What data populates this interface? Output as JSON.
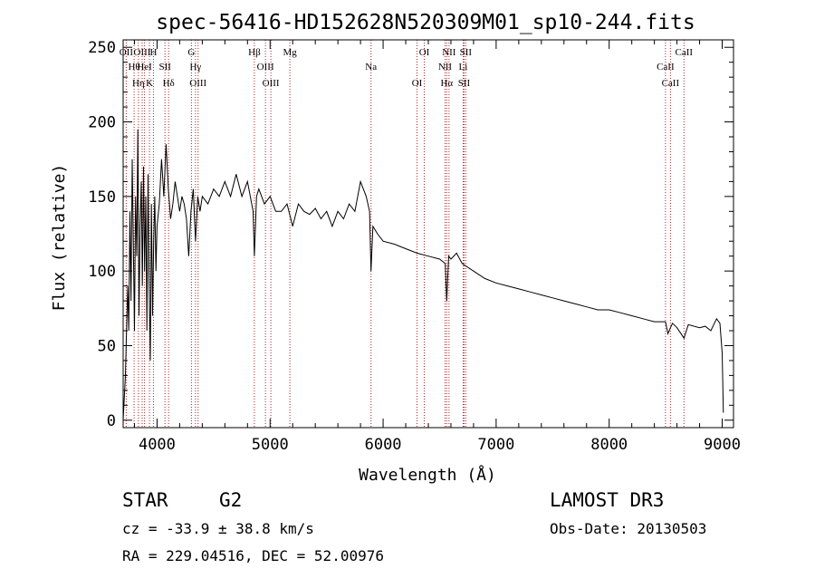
{
  "chart_data": {
    "type": "line",
    "title": "spec-56416-HD152628N520309M01_sp10-244.fits",
    "xlabel": "Wavelength (Å)",
    "ylabel": "Flux (relative)",
    "xlim": [
      3700,
      9100
    ],
    "ylim": [
      -5,
      255
    ],
    "xticks": [
      4000,
      5000,
      6000,
      7000,
      8000,
      9000
    ],
    "yticks": [
      0,
      50,
      100,
      150,
      200,
      250
    ],
    "grid": false,
    "series": [
      {
        "name": "spectrum",
        "x": [
          3700,
          3720,
          3740,
          3750,
          3760,
          3770,
          3780,
          3790,
          3800,
          3810,
          3820,
          3830,
          3840,
          3850,
          3860,
          3870,
          3880,
          3890,
          3900,
          3910,
          3920,
          3930,
          3940,
          3950,
          3960,
          3970,
          3980,
          3990,
          4000,
          4020,
          4040,
          4060,
          4080,
          4100,
          4120,
          4140,
          4160,
          4180,
          4200,
          4220,
          4240,
          4260,
          4280,
          4300,
          4320,
          4340,
          4360,
          4380,
          4400,
          4450,
          4500,
          4550,
          4600,
          4650,
          4700,
          4750,
          4800,
          4850,
          4861,
          4880,
          4900,
          4950,
          5000,
          5050,
          5100,
          5150,
          5200,
          5250,
          5300,
          5350,
          5400,
          5450,
          5500,
          5550,
          5600,
          5650,
          5700,
          5750,
          5800,
          5850,
          5880,
          5893,
          5910,
          5950,
          6000,
          6100,
          6200,
          6300,
          6400,
          6500,
          6550,
          6563,
          6580,
          6600,
          6650,
          6700,
          6800,
          6900,
          7000,
          7100,
          7200,
          7300,
          7400,
          7500,
          7600,
          7700,
          7800,
          7900,
          8000,
          8100,
          8200,
          8300,
          8400,
          8498,
          8520,
          8542,
          8560,
          8600,
          8662,
          8700,
          8800,
          8850,
          8900,
          8950,
          8980,
          9000,
          9010
        ],
        "y": [
          0,
          30,
          90,
          60,
          140,
          80,
          175,
          120,
          60,
          150,
          110,
          195,
          70,
          130,
          160,
          90,
          170,
          100,
          150,
          60,
          165,
          90,
          40,
          145,
          70,
          120,
          150,
          100,
          130,
          145,
          175,
          150,
          185,
          155,
          135,
          145,
          160,
          150,
          140,
          150,
          145,
          135,
          110,
          140,
          155,
          120,
          150,
          140,
          150,
          145,
          155,
          150,
          160,
          150,
          165,
          150,
          160,
          140,
          110,
          150,
          155,
          145,
          150,
          140,
          140,
          145,
          130,
          145,
          140,
          138,
          142,
          135,
          140,
          130,
          140,
          135,
          145,
          140,
          160,
          150,
          140,
          100,
          130,
          125,
          120,
          118,
          115,
          112,
          110,
          108,
          105,
          80,
          110,
          108,
          112,
          105,
          100,
          95,
          92,
          90,
          88,
          86,
          84,
          82,
          80,
          78,
          76,
          74,
          74,
          72,
          70,
          68,
          66,
          66,
          58,
          62,
          65,
          62,
          55,
          64,
          62,
          63,
          60,
          68,
          65,
          45,
          5
        ]
      }
    ],
    "lines": [
      {
        "name": "OII",
        "wavelength": 3727
      },
      {
        "name": "Hθ",
        "wavelength": 3797
      },
      {
        "name": "Hη",
        "wavelength": 3835
      },
      {
        "name": "OIII",
        "wavelength": 3868
      },
      {
        "name": "HeI",
        "wavelength": 3889
      },
      {
        "name": "K",
        "wavelength": 3933
      },
      {
        "name": "H",
        "wavelength": 3968
      },
      {
        "name": "SII",
        "wavelength": 4070
      },
      {
        "name": "Hδ",
        "wavelength": 4102
      },
      {
        "name": "G",
        "wavelength": 4304
      },
      {
        "name": "Hγ",
        "wavelength": 4340
      },
      {
        "name": "OIII",
        "wavelength": 4363
      },
      {
        "name": "Hβ",
        "wavelength": 4861
      },
      {
        "name": "OIII",
        "wavelength": 4959
      },
      {
        "name": "OIII",
        "wavelength": 5007
      },
      {
        "name": "Mg",
        "wavelength": 5175
      },
      {
        "name": "Na",
        "wavelength": 5893
      },
      {
        "name": "OI",
        "wavelength": 6300
      },
      {
        "name": "OI",
        "wavelength": 6364
      },
      {
        "name": "NII",
        "wavelength": 6548
      },
      {
        "name": "Hα",
        "wavelength": 6563
      },
      {
        "name": "NII",
        "wavelength": 6583
      },
      {
        "name": "Li",
        "wavelength": 6708
      },
      {
        "name": "SII",
        "wavelength": 6716
      },
      {
        "name": "SII",
        "wavelength": 6731
      },
      {
        "name": "CaII",
        "wavelength": 8498
      },
      {
        "name": "CaII",
        "wavelength": 8542
      },
      {
        "name": "CaII",
        "wavelength": 8662
      }
    ],
    "line_color": "#b22222"
  },
  "info": {
    "object_type": "STAR",
    "subclass": "G2",
    "survey": "LAMOST DR3",
    "cz": "cz = -33.9 ± 38.8 km/s",
    "obs_date": "Obs-Date: 20130503",
    "coords": "RA = 229.04516, DEC =  52.00976"
  }
}
